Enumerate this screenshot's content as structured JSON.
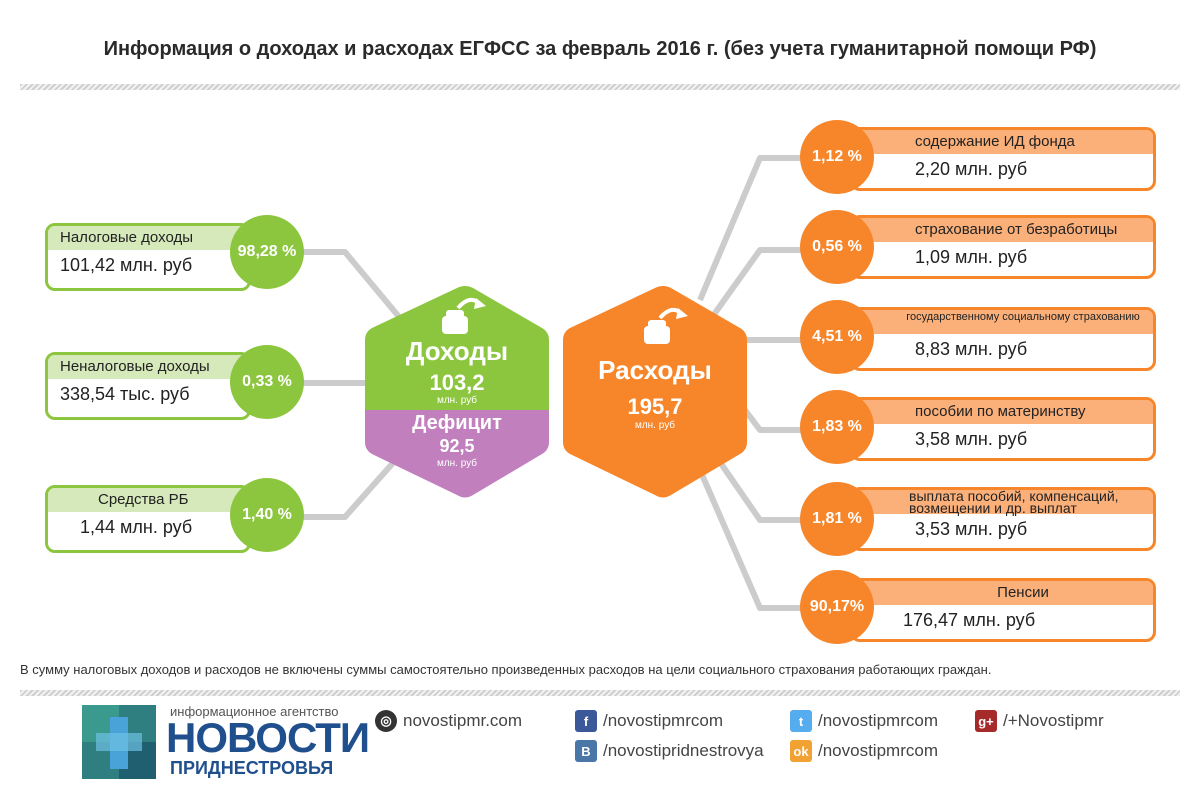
{
  "title": "Информация о доходах и расходах ЕГФСС за февраль 2016 г. (без учета гуманитарной помощи РФ)",
  "income_hub": {
    "label": "Доходы",
    "value": "103,2",
    "unit": "млн. руб"
  },
  "deficit": {
    "label": "Дефицит",
    "value": "92,5",
    "unit": "млн. руб"
  },
  "expense_hub": {
    "label": "Расходы",
    "value": "195,7",
    "unit": "млн. руб"
  },
  "income": [
    {
      "caption": "Налоговые доходы",
      "value": "101,42 млн. руб",
      "percent": "98,28 %"
    },
    {
      "caption": "Неналоговые доходы",
      "value": "338,54 тыс. руб",
      "percent": "0,33 %"
    },
    {
      "caption": "Средства РБ",
      "value": "1,44  млн. руб",
      "percent": "1,40 %"
    }
  ],
  "expenses": [
    {
      "caption": "содержание ИД фонда",
      "value": "2,20  млн. руб",
      "percent": "1,12 %"
    },
    {
      "caption": "страхование от безработицы",
      "value": "1,09  млн. руб",
      "percent": "0,56 %"
    },
    {
      "caption": "государственному социальному страхованию",
      "value": "8,83  млн. руб",
      "percent": "4,51 %"
    },
    {
      "caption": "пособии по материнству",
      "value": "3,58  млн. руб",
      "percent": "1,83 %"
    },
    {
      "caption": "выплата пособий, компенсаций, возмещении  и др. выплат",
      "value": "3,53  млн. руб",
      "percent": "1,81 %"
    },
    {
      "caption": "Пенсии",
      "value": "176,47  млн. руб",
      "percent": "90,17%"
    }
  ],
  "note": "В сумму налоговых доходов и расходов не включены суммы самостоятельно произведенных расходов на цели социального страхования работающих граждан.",
  "footer": {
    "logo_top": "информационное агентство",
    "logo_main": "НОВОСТИ",
    "logo_sub": "ПРИДНЕСТРОВЬЯ",
    "links": [
      {
        "icon": "globe-icon",
        "text": "novostipmr.com"
      },
      {
        "icon": "facebook-icon",
        "text": "/novostipmrcom"
      },
      {
        "icon": "vk-icon",
        "text": "/novostipridnestrovya"
      },
      {
        "icon": "twitter-icon",
        "text": "/novostipmrcom"
      },
      {
        "icon": "odnoklassniki-icon",
        "text": "/novostipmrcom"
      },
      {
        "icon": "googleplus-icon",
        "text": "/+Novostipmr"
      }
    ]
  },
  "colors": {
    "green": "#8cc63f",
    "orange": "#f7862a",
    "purple": "#c17fbd",
    "line": "#cccccc"
  }
}
